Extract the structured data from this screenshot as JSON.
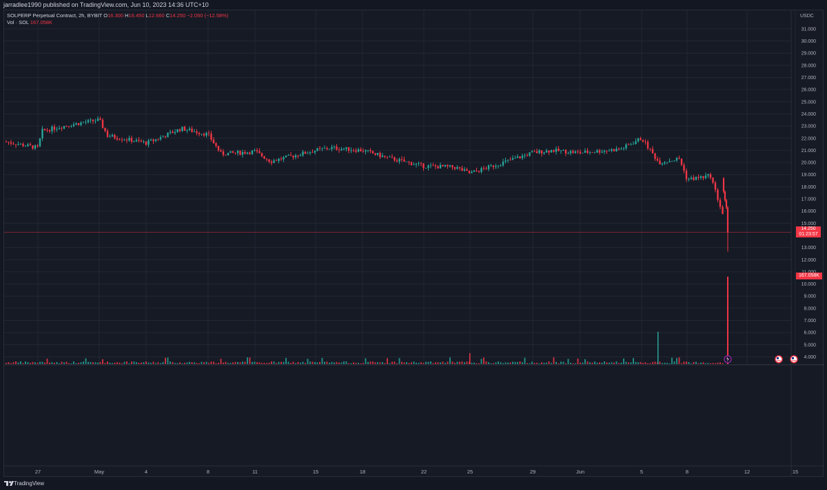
{
  "header": {
    "published_text": "jarradlee1990 published on TradingView.com, Jun 10, 2023 14:36 UTC+10"
  },
  "legend": {
    "symbol_line": "SOLPERP Perpetual Contract, 2h, BYBIT",
    "open_label": "O",
    "open_value": "16.300",
    "high_label": "H",
    "high_value": "16.450",
    "low_label": "L",
    "low_value": "12.660",
    "close_label": "C",
    "close_value": "14.250",
    "change_value": "−2.050 (−12.58%)",
    "volume_label": "Vol · SOL",
    "volume_value": "167.058K"
  },
  "price_axis": {
    "currency": "USDC",
    "ticks": [
      "31.000",
      "30.000",
      "29.000",
      "28.000",
      "27.000",
      "26.000",
      "25.000",
      "24.000",
      "23.000",
      "22.000",
      "21.000",
      "20.000",
      "19.000",
      "18.000",
      "17.000",
      "16.000",
      "15.000",
      "13.000",
      "12.000",
      "11.000",
      "10.000",
      "9.000",
      "8.000",
      "7.000",
      "6.000",
      "5.000",
      "4.000"
    ],
    "last_price": "14.250",
    "countdown": "01:23:57",
    "volume_tag": "167.058K"
  },
  "time_axis": {
    "ticks": [
      "27",
      "May",
      "4",
      "8",
      "11",
      "15",
      "18",
      "22",
      "25",
      "29",
      "Jun",
      "5",
      "8",
      "12",
      "15"
    ]
  },
  "footer": {
    "brand": "TradingView"
  },
  "icons": [
    "lightning-event-icon",
    "us-flag-event-icon",
    "us-flag-event-icon"
  ],
  "colors": {
    "up": "#26a69a",
    "down": "#f23645",
    "background": "#161a25",
    "grid": "#232733"
  },
  "chart_data": {
    "type": "candlestick",
    "symbol": "SOLPERP",
    "interval": "2h",
    "exchange": "BYBIT",
    "y_unit": "USDC",
    "ylim": [
      3.0,
      32.0
    ],
    "grid": true,
    "x_ticks": [
      "27",
      "May",
      "4",
      "8",
      "11",
      "15",
      "18",
      "22",
      "25",
      "29",
      "Jun",
      "5",
      "8",
      "12",
      "15"
    ],
    "price_path": [
      {
        "x": "26",
        "y": 21.7
      },
      {
        "x": "27",
        "y": 21.2
      },
      {
        "x": "28",
        "y": 22.6
      },
      {
        "x": "29",
        "y": 23.1
      },
      {
        "x": "May",
        "y": 23.5
      },
      {
        "x": "2",
        "y": 22.2
      },
      {
        "x": "4",
        "y": 21.6
      },
      {
        "x": "5",
        "y": 22.0
      },
      {
        "x": "7",
        "y": 22.8
      },
      {
        "x": "8",
        "y": 22.3
      },
      {
        "x": "9",
        "y": 20.7
      },
      {
        "x": "11",
        "y": 20.9
      },
      {
        "x": "12",
        "y": 20.1
      },
      {
        "x": "15",
        "y": 21.0
      },
      {
        "x": "16",
        "y": 21.2
      },
      {
        "x": "18",
        "y": 21.0
      },
      {
        "x": "20",
        "y": 20.4
      },
      {
        "x": "22",
        "y": 19.7
      },
      {
        "x": "24",
        "y": 19.6
      },
      {
        "x": "25",
        "y": 19.1
      },
      {
        "x": "29",
        "y": 20.8
      },
      {
        "x": "31",
        "y": 21.0
      },
      {
        "x": "Jun",
        "y": 20.8
      },
      {
        "x": "3",
        "y": 21.1
      },
      {
        "x": "5",
        "y": 22.0
      },
      {
        "x": "6",
        "y": 20.0
      },
      {
        "x": "7",
        "y": 20.3
      },
      {
        "x": "8",
        "y": 18.6
      },
      {
        "x": "9",
        "y": 18.9
      },
      {
        "x": "10",
        "y": 14.25
      }
    ],
    "last_candle": {
      "open": 16.3,
      "high": 16.45,
      "low": 12.66,
      "close": 14.25
    },
    "volume_series_name": "Vol · SOL",
    "last_volume": "167.058K"
  }
}
